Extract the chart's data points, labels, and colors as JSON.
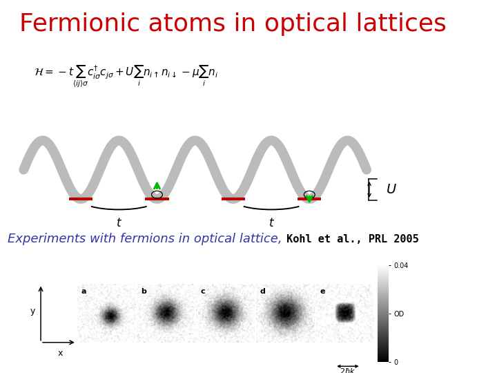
{
  "title": "Fermionic atoms in optical lattices",
  "title_color": "#cc0000",
  "title_fontsize": 26,
  "title_fontstyle": "normal",
  "title_fontweight": "normal",
  "background_color": "#ffffff",
  "experiments_text": "Experiments with fermions in optical lattice,",
  "citation_text": " Kohl et al., PRL 2005",
  "experiments_color": "#3333aa",
  "experiments_fontsize": 13,
  "citation_fontsize": 11,
  "lattice_color": "#bbbbbb",
  "lattice_linewidth": 10,
  "red_bar_color": "#bb0000",
  "red_bar_linewidth": 3,
  "arrow_color": "#00bb00",
  "U_label": "U",
  "t_label": "t",
  "panel_labels": [
    "a",
    "b",
    "c",
    "d",
    "e"
  ],
  "colorbar_labels": [
    "0.04",
    "OD",
    "0"
  ],
  "equation_fontsize": 11
}
